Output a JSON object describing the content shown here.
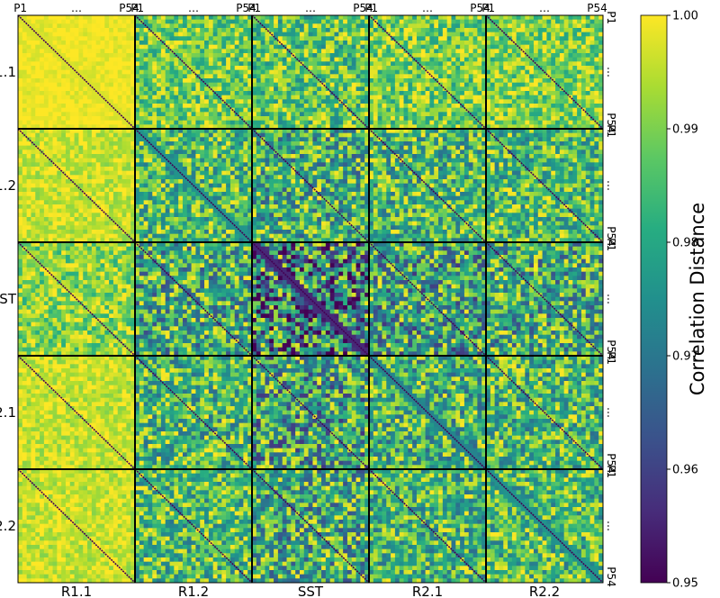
{
  "chart_data": {
    "type": "heatmap",
    "title": "",
    "blocks": [
      "R1.1",
      "R1.2",
      "SST",
      "R2.1",
      "R2.2"
    ],
    "sub_ticks": [
      "P1",
      "…",
      "P54"
    ],
    "participants_per_block": 54,
    "block_mean_distance": [
      [
        0.999,
        0.989,
        0.987,
        0.989,
        0.99
      ],
      [
        0.996,
        0.985,
        0.982,
        0.984,
        0.985
      ],
      [
        0.991,
        0.981,
        0.972,
        0.979,
        0.981
      ],
      [
        0.996,
        0.984,
        0.979,
        0.983,
        0.984
      ],
      [
        0.996,
        0.985,
        0.981,
        0.984,
        0.985
      ]
    ],
    "diagonal_value": 0.95,
    "colormap": "viridis",
    "colorbar": {
      "label": "Correlation Distance",
      "range": [
        0.95,
        1.0
      ],
      "ticks": [
        "0.95",
        "0.96",
        "0.97",
        "0.98",
        "0.99",
        "1.00"
      ]
    },
    "grid": false
  }
}
